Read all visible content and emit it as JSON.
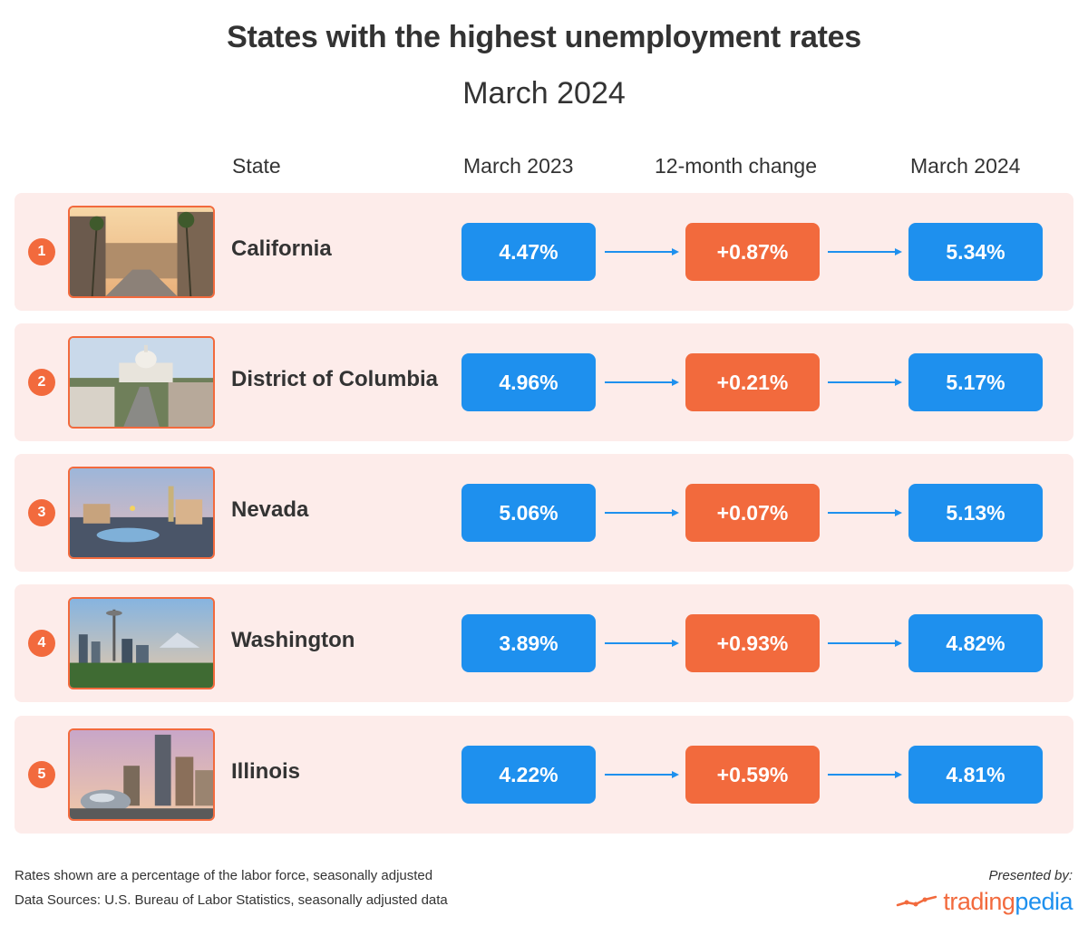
{
  "header": {
    "title": "States with the highest unemployment rates",
    "subtitle": "March 2024"
  },
  "columns": {
    "state": "State",
    "march_2023": "March 2023",
    "change": "12-month change",
    "march_2024": "March 2024"
  },
  "rows": [
    {
      "rank": "1",
      "state": "California",
      "march_2023": "4.47%",
      "change": "+0.87%",
      "march_2024": "5.34%",
      "photo": "hollywood-street-photo"
    },
    {
      "rank": "2",
      "state": "District of Columbia",
      "march_2023": "4.96%",
      "change": "+0.21%",
      "march_2024": "5.17%",
      "photo": "capitol-building-photo"
    },
    {
      "rank": "3",
      "state": "Nevada",
      "march_2023": "5.06%",
      "change": "+0.07%",
      "march_2024": "5.13%",
      "photo": "las-vegas-strip-photo"
    },
    {
      "rank": "4",
      "state": "Washington",
      "march_2023": "3.89%",
      "change": "+0.93%",
      "march_2024": "4.82%",
      "photo": "seattle-skyline-photo"
    },
    {
      "rank": "5",
      "state": "Illinois",
      "march_2023": "4.22%",
      "change": "+0.59%",
      "march_2024": "4.81%",
      "photo": "chicago-bean-photo"
    }
  ],
  "footer": {
    "note": "Rates shown are a percentage of the labor force, seasonally adjusted",
    "sources": "Data Sources: U.S. Bureau of Labor Statistics, seasonally adjusted data",
    "presented_by": "Presented by:",
    "brand_part1": "trading",
    "brand_part2": "pedia"
  },
  "colors": {
    "blue": "#1e90ee",
    "orange": "#f26a3d",
    "row_bg": "#fdecea",
    "text": "#333333"
  },
  "chart_data": {
    "type": "table",
    "title": "States with the highest unemployment rates",
    "subtitle": "March 2024",
    "columns": [
      "State",
      "March 2023",
      "12-month change",
      "March 2024"
    ],
    "categories": [
      "California",
      "District of Columbia",
      "Nevada",
      "Washington",
      "Illinois"
    ],
    "series": [
      {
        "name": "March 2023",
        "values": [
          4.47,
          4.96,
          5.06,
          3.89,
          4.22
        ]
      },
      {
        "name": "12-month change",
        "values": [
          0.87,
          0.21,
          0.07,
          0.93,
          0.59
        ]
      },
      {
        "name": "March 2024",
        "values": [
          5.34,
          5.17,
          5.13,
          4.82,
          4.81
        ]
      }
    ],
    "unit": "%"
  }
}
